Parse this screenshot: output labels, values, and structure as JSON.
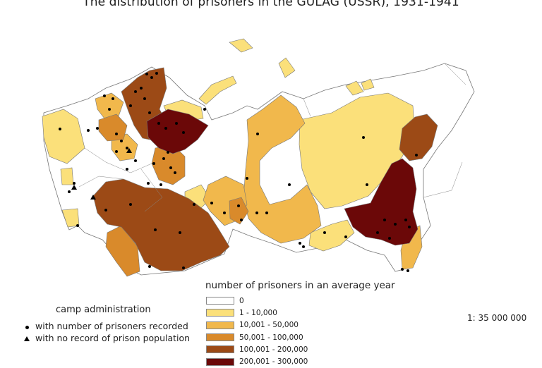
{
  "title": "The distribution of prisoners in the GULAG (USSR), 1931-1941",
  "legend": {
    "title": "number of prisoners in an average year",
    "classes": [
      {
        "label": "0",
        "color": "#ffffff"
      },
      {
        "label": "1 - 10,000",
        "color": "#fbe07a"
      },
      {
        "label": "10,001 - 50,000",
        "color": "#f1b84c"
      },
      {
        "label": "50,001 - 100,000",
        "color": "#d98a2b"
      },
      {
        "label": "100,001 - 200,000",
        "color": "#9c4a16"
      },
      {
        "label": "200,001 - 300,000",
        "color": "#6b0808"
      }
    ]
  },
  "camp_legend": {
    "title": "camp administration",
    "items": [
      {
        "symbol": "dot",
        "label": "with number of prisoners recorded"
      },
      {
        "symbol": "triangle",
        "label": "with no record of prison population"
      }
    ]
  },
  "scale": "1: 35 000 000"
}
